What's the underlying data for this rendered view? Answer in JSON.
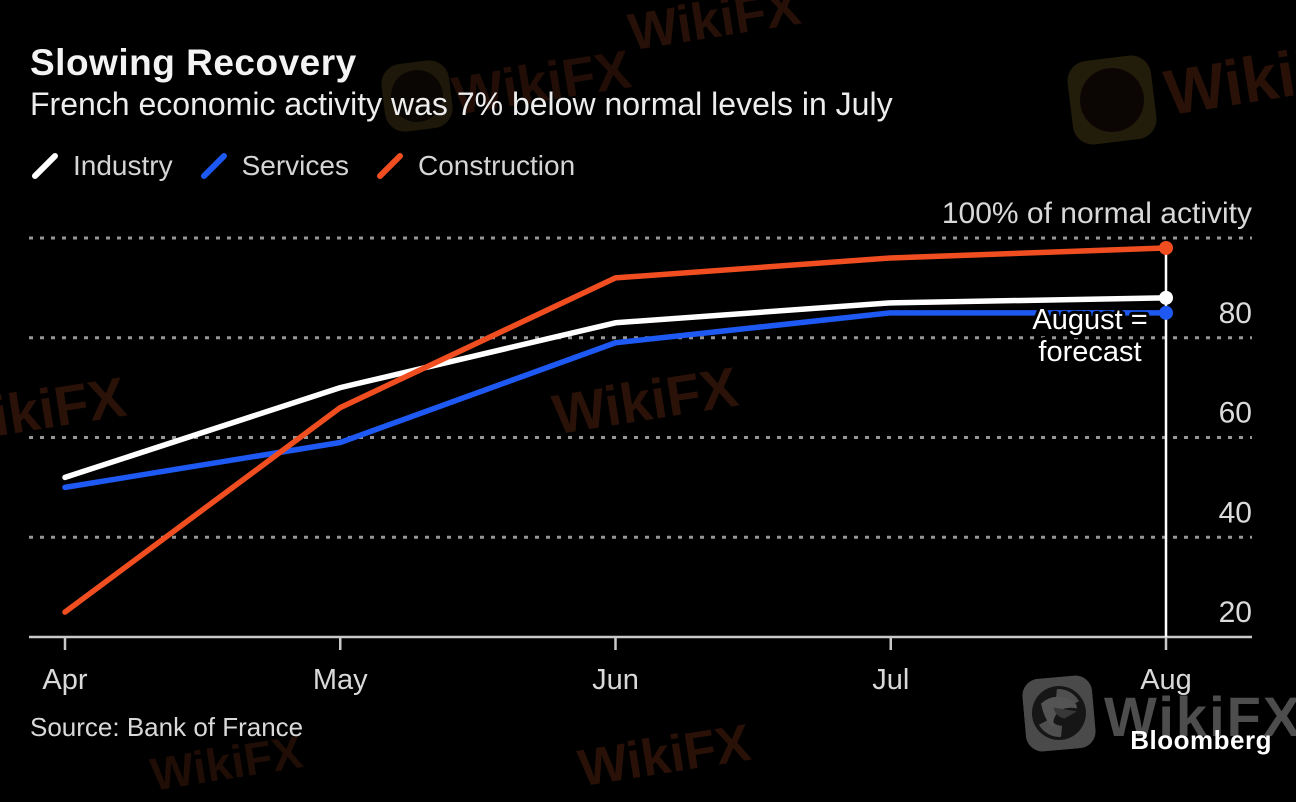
{
  "chart_data": {
    "type": "line",
    "title": "Slowing Recovery",
    "subtitle": "French economic activity was 7% below normal levels in July",
    "source": "Source: Bank of France",
    "categories": [
      "Apr",
      "May",
      "Jun",
      "Jul",
      "Aug"
    ],
    "series": [
      {
        "name": "Industry",
        "color": "#ffffff",
        "values": [
          52,
          70,
          83,
          87,
          88
        ]
      },
      {
        "name": "Services",
        "color": "#1d59f2",
        "values": [
          50,
          59,
          79,
          85,
          85
        ]
      },
      {
        "name": "Construction",
        "color": "#f04e21",
        "values": [
          25,
          66,
          92,
          96,
          98
        ]
      }
    ],
    "ylim": [
      20,
      100
    ],
    "yticks": [
      20,
      40,
      60,
      80
    ],
    "gridline_values": [
      40,
      60,
      80,
      100
    ],
    "ytick_top_label": "100% of normal activity",
    "grid": "horizontal-dotted",
    "grid_color": "#969696",
    "axis_color": "#c9c9c9",
    "background_color": "#000000",
    "legend_position": "top-left",
    "ytick_side": "right",
    "forecast_category": "Aug",
    "annotation": {
      "line1": "August =",
      "line2": "forecast"
    }
  },
  "branding": {
    "bloomberg": "Bloomberg",
    "watermark_text": "WikiFX"
  }
}
